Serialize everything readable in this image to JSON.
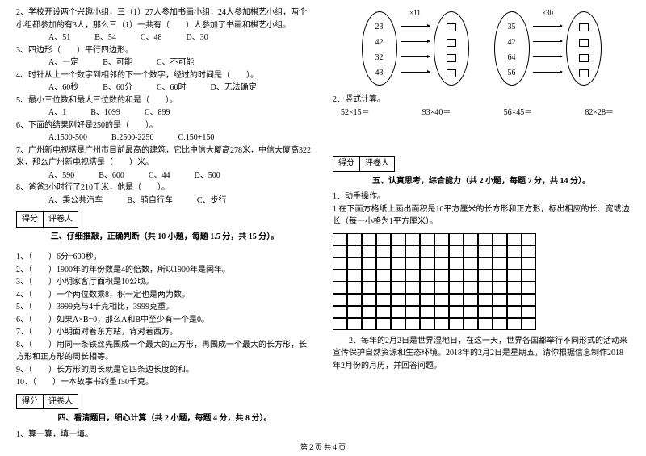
{
  "leftCol": {
    "q2": "2、学校开设两个兴趣小组，三（1）27人参加书画小组，24人参加棋艺小组，两个小组都参加的有3人，那么三（1）一共有（　　）人参加了书画和棋艺小组。",
    "q2opts": "A、51　　　B、54　　　C、48　　　D、30",
    "q3": "3、四边形（　　）平行四边形。",
    "q3opts": "A、一定　　　B、可能　　　C、不可能",
    "q4": "4、时针从上一个数字到相邻的下一个数字，经过的时间是（　　）。",
    "q4opts": "A、60秒　　　B、60分　　　C、60时　　　D、无法确定",
    "q5": "5、最小三位数和最大三位数的和是（　　）。",
    "q5opts": "A、1　　　B、1099　　　C、899",
    "q6": "6、下面的结果刚好是250的是（　　）。",
    "q6opts": "A.1500-500　　　B.2500-2250　　　C.150+150",
    "q7": "7、广州新电视塔是广州市目前最高的建筑，它比中信大厦高278米，中信大厦高322米，那么广州新电视塔是（　　）米。",
    "q7opts": "A、590　　　B、600　　　C、44　　　D、500",
    "q8": "8、爸爸3小时行了210千米，他是（　　）。",
    "q8opts": "A、乘公共汽车　　　B、骑自行车　　　C、步行",
    "scoreLabelA": "得分",
    "scoreLabelB": "评卷人",
    "sec3title": "三、仔细推敲，正确判断（共 10 小题，每题 1.5 分，共 15 分）。",
    "j1": "1、（　　）6分=600秒。",
    "j2": "2、（　　）1900年的年份数是4的倍数，所以1900年是闰年。",
    "j3": "3、（　　）小明家客厅面积是10公顷。",
    "j4": "4、（　　）一个两位数乘8，积一定也是两为数。",
    "j5": "5、（　　）3999克与4千克相比，3999克重。",
    "j6": "6、（　　）如果A×B=0，那么A和B中至少有一个是0。",
    "j7": "7、（　　）小明面对着东方站，背对着西方。",
    "j8": "8、（　　）用同一条铁丝先围成一个最大的正方形，再围成一个最大的长方形，长方形和正方形的周长相等。",
    "j9": "9、（　　）长方形的周长就是它四条边长度的和。",
    "j10": "10、（　　）一本故事书约重150千克。",
    "sec4title": "四、看清题目，细心计算（共 2 小题，每题 4 分，共 8 分）。",
    "c1": "1、算一算，填一填。"
  },
  "rightCol": {
    "d1lbl": "×11",
    "d2lbl": "×30",
    "ovalA": [
      "23",
      "42",
      "32",
      "43"
    ],
    "ovalB": [
      "35",
      "42",
      "64",
      "56"
    ],
    "c2": "2、竖式计算。",
    "calc1": "52×15＝",
    "calc2": "93×40＝",
    "calc3": "56×45＝",
    "calc4": "82×28＝",
    "scoreLabelA": "得分",
    "scoreLabelB": "评卷人",
    "sec5title": "五、认真思考，综合能力（共 2 小题，每题 7 分，共 14 分）。",
    "t1": "1、动手操作。",
    "t1a": "1.在下面方格纸上画出面积是10平方厘米的长方形和正方形，标出相应的长、宽或边长（每一小格为1平方厘米）。",
    "t2": "　　2、每年的2月2日是世界湿地日，在这一天，世界各国都举行不同形式的活动来宣传保护自然资源和生态环境。2018年的2月2日是星期五，请你根据信息制作2018年2月份的月历，并回答问题。",
    "gridRows": 8,
    "gridCols": 14
  },
  "footer": "第 2 页 共 4 页"
}
